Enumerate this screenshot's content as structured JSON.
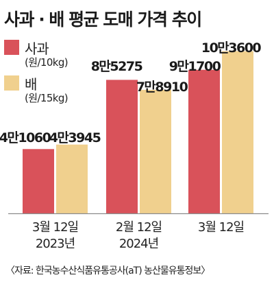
{
  "title": "사과 · 배 평균 도매 가격 추이",
  "legend": [
    {
      "name": "사과",
      "unit": "(원/10kg)"
    },
    {
      "name": "배",
      "unit": "(원/15kg)"
    }
  ],
  "colors": {
    "apple": "#d9525a",
    "pear": "#f0d08e",
    "axis": "#8a8a8a",
    "text": "#1a1a1a"
  },
  "source": "〈자료: 한국농수산식품유통공사(aT) 농산물유통정보〉",
  "chart_data": {
    "type": "bar",
    "title": "사과 · 배 평균 도매 가격 추이",
    "categories": [
      [
        "3월 12일",
        "2023년"
      ],
      [
        "2월 12일",
        "2024년"
      ],
      [
        "3월 12일"
      ]
    ],
    "series": [
      {
        "name": "사과",
        "values": [
          41060,
          85275,
          91700
        ],
        "labels": [
          "4만1060",
          "8만5275",
          "9만1700"
        ]
      },
      {
        "name": "배",
        "values": [
          43945,
          78910,
          103600
        ],
        "labels": [
          "4만3945",
          "7만8910",
          "10만3600"
        ]
      }
    ],
    "xlabel": "",
    "ylabel": "",
    "ylim": [
      0,
      110000
    ],
    "grid": false,
    "legend_position": "top-left"
  }
}
